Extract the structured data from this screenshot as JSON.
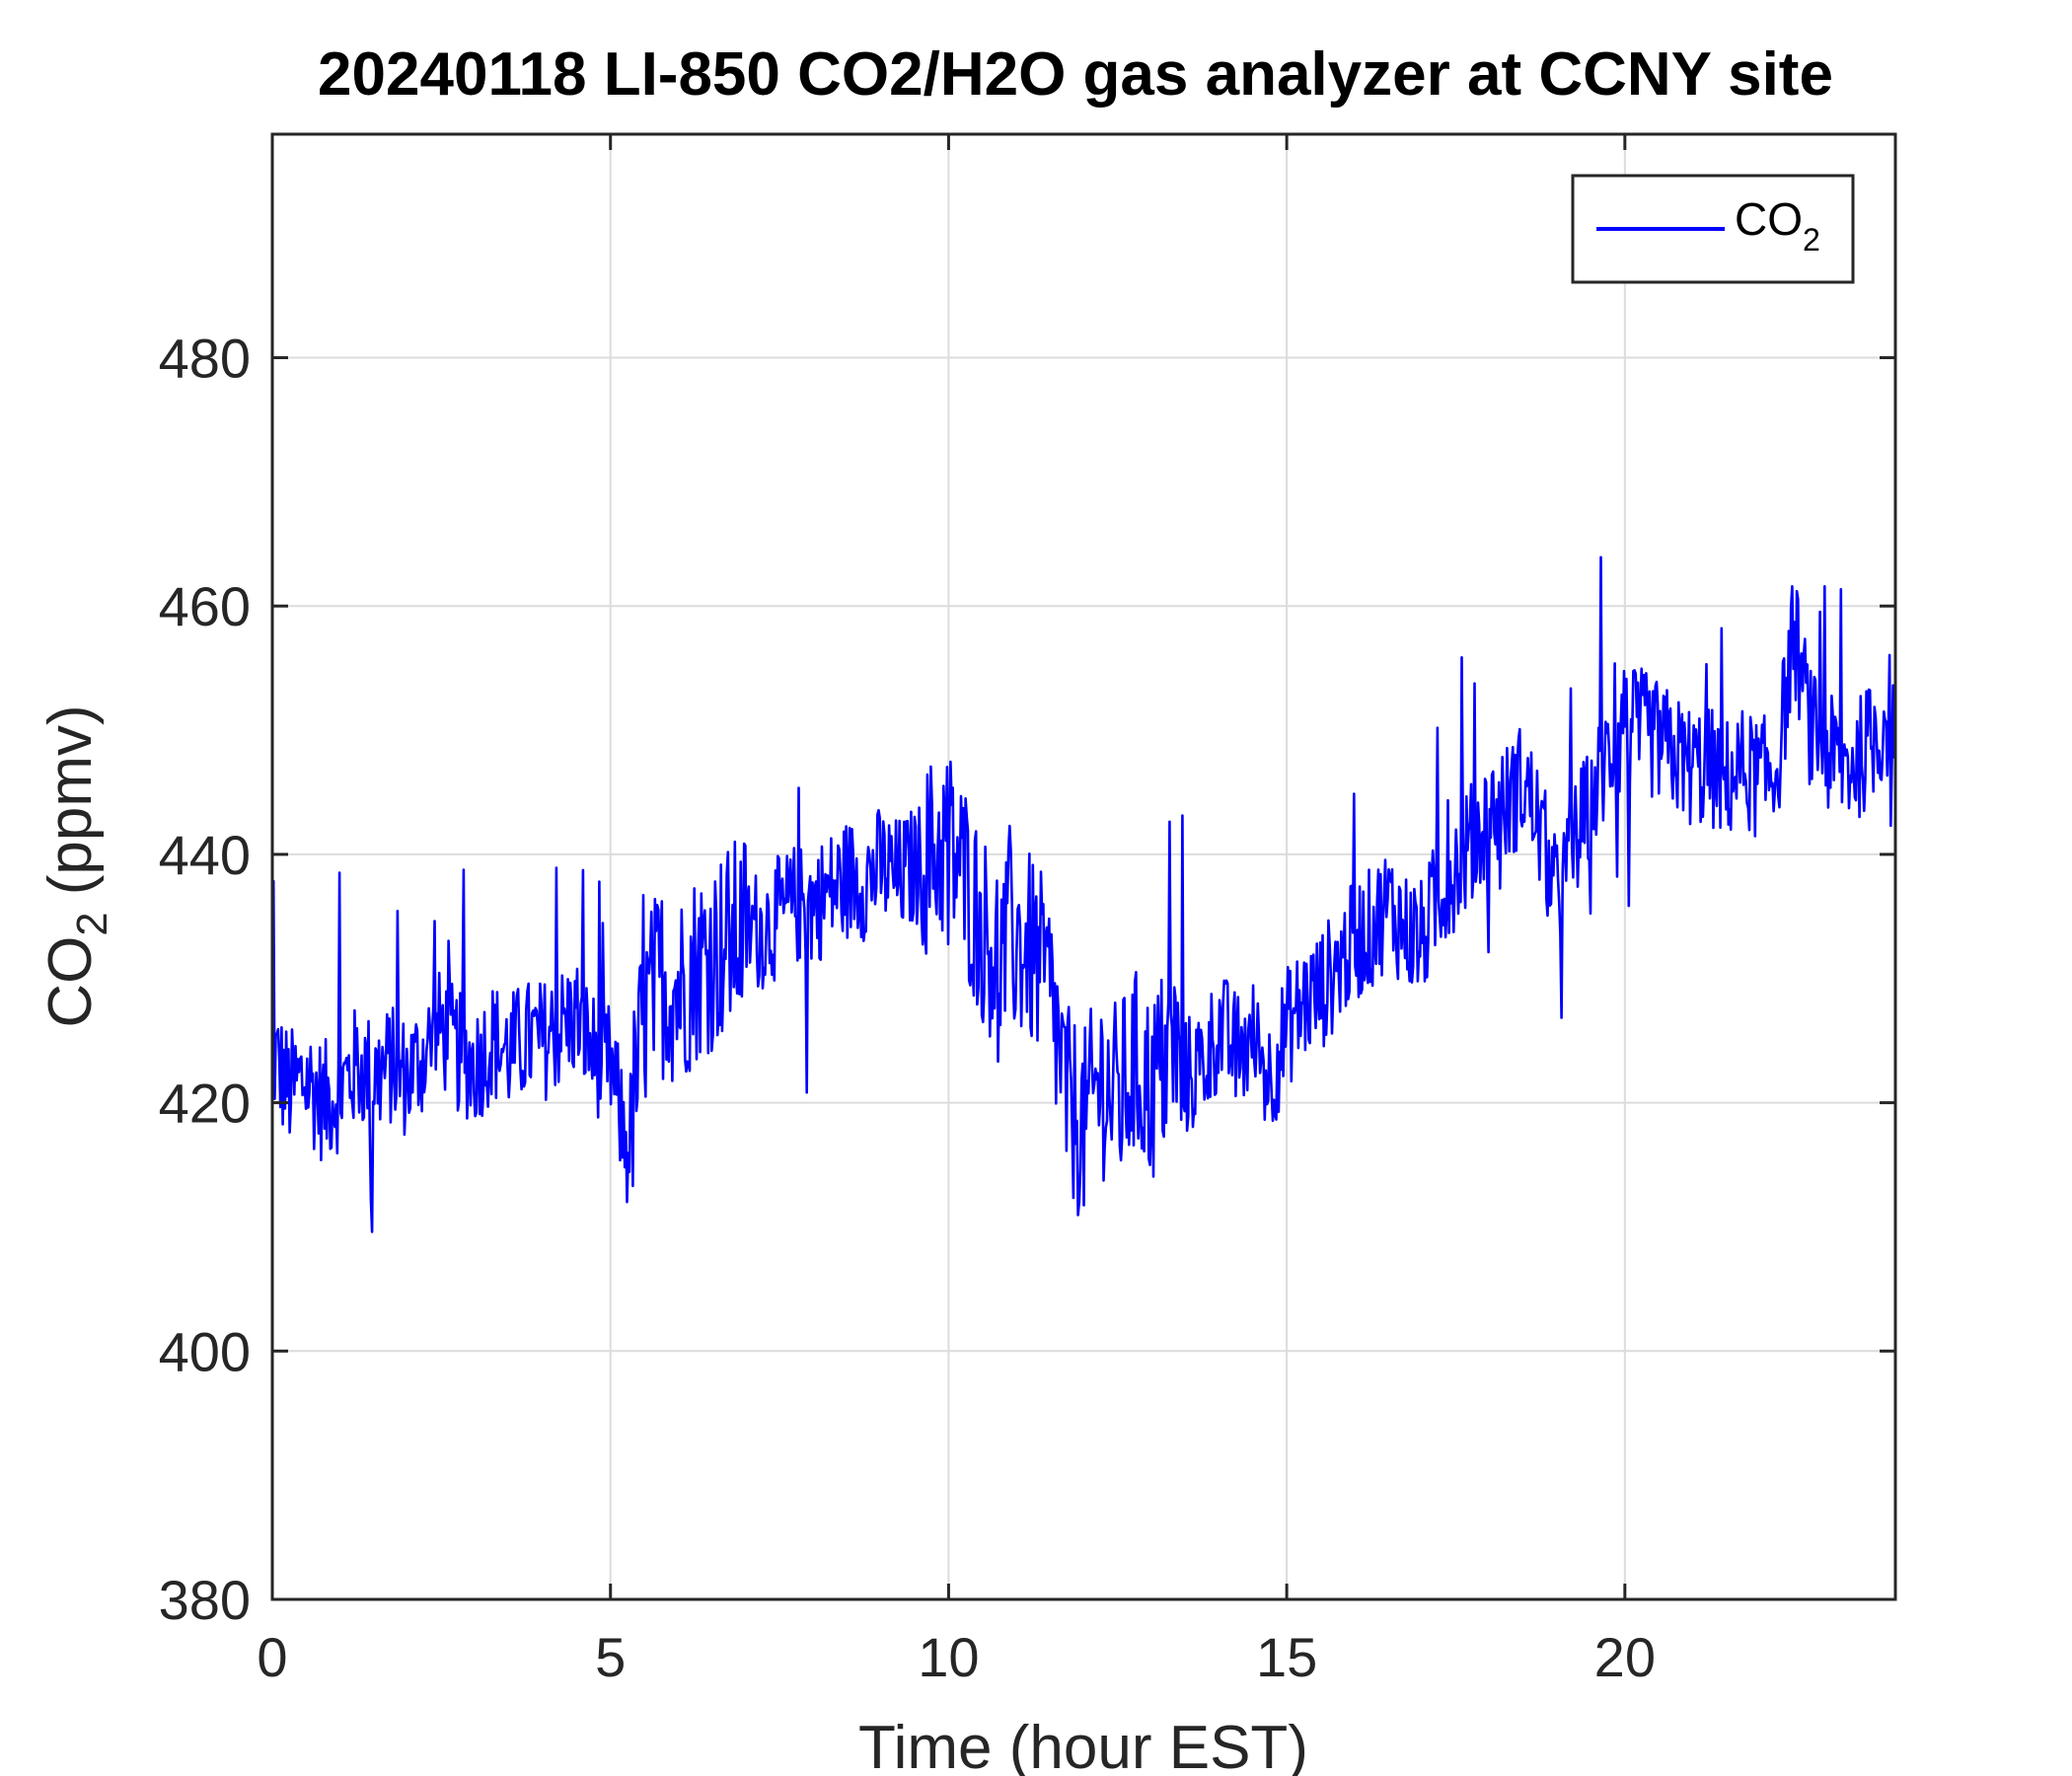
{
  "chart_data": {
    "type": "line",
    "title": "20240118 LI-850 CO2/H2O gas analyzer at CCNY site",
    "xlabel": "Time (hour EST)",
    "ylabel": {
      "main": "CO",
      "sub": "2",
      "suffix": " (ppmv)"
    },
    "xlim": [
      0,
      24
    ],
    "ylim": [
      380,
      498
    ],
    "xticks": [
      0,
      5,
      10,
      15,
      20
    ],
    "yticks": [
      380,
      400,
      420,
      440,
      460,
      480
    ],
    "grid": true,
    "legend": {
      "position": "top-right",
      "entries": [
        {
          "main": "CO",
          "sub": "2"
        }
      ]
    },
    "series": [
      {
        "name": "CO2",
        "color": "#0000ff",
        "x": [
          0.0,
          0.25,
          0.5,
          0.75,
          1.0,
          1.25,
          1.5,
          1.75,
          2.0,
          2.25,
          2.5,
          2.75,
          3.0,
          3.25,
          3.5,
          3.75,
          4.0,
          4.25,
          4.5,
          4.75,
          5.0,
          5.25,
          5.5,
          5.75,
          6.0,
          6.25,
          6.5,
          6.75,
          7.0,
          7.25,
          7.5,
          7.75,
          8.0,
          8.25,
          8.5,
          8.75,
          9.0,
          9.25,
          9.5,
          9.75,
          10.0,
          10.25,
          10.5,
          10.75,
          11.0,
          11.25,
          11.5,
          11.75,
          12.0,
          12.25,
          12.5,
          12.75,
          13.0,
          13.25,
          13.5,
          13.75,
          14.0,
          14.25,
          14.5,
          14.75,
          15.0,
          15.25,
          15.5,
          15.75,
          16.0,
          16.25,
          16.5,
          16.75,
          17.0,
          17.25,
          17.5,
          17.75,
          18.0,
          18.25,
          18.5,
          18.75,
          19.0,
          19.25,
          19.5,
          19.75,
          20.0,
          20.25,
          20.5,
          20.75,
          21.0,
          21.25,
          21.5,
          21.75,
          22.0,
          22.25,
          22.5,
          22.75,
          23.0,
          23.25,
          23.5,
          23.75,
          24.0
        ],
        "values": [
          424,
          421,
          422,
          420,
          421,
          423,
          422,
          423,
          422,
          424,
          426,
          424,
          423,
          425,
          424,
          425,
          425,
          426,
          427,
          424,
          423,
          416,
          427,
          430,
          429,
          431,
          432,
          433,
          434,
          434,
          435,
          436,
          436,
          437,
          438,
          438,
          439,
          438,
          439,
          440,
          441,
          438,
          434,
          432,
          433,
          432,
          429,
          420,
          418,
          422,
          420,
          423,
          421,
          424,
          422,
          423,
          426,
          424,
          425,
          422,
          426,
          428,
          429,
          431,
          433,
          434,
          436,
          434,
          433,
          437,
          439,
          441,
          443,
          444,
          446,
          442,
          436,
          441,
          444,
          448,
          450,
          450,
          449,
          448,
          447,
          447,
          446,
          447,
          446,
          447,
          458,
          450,
          448,
          447,
          448,
          450,
          452
        ]
      }
    ]
  }
}
